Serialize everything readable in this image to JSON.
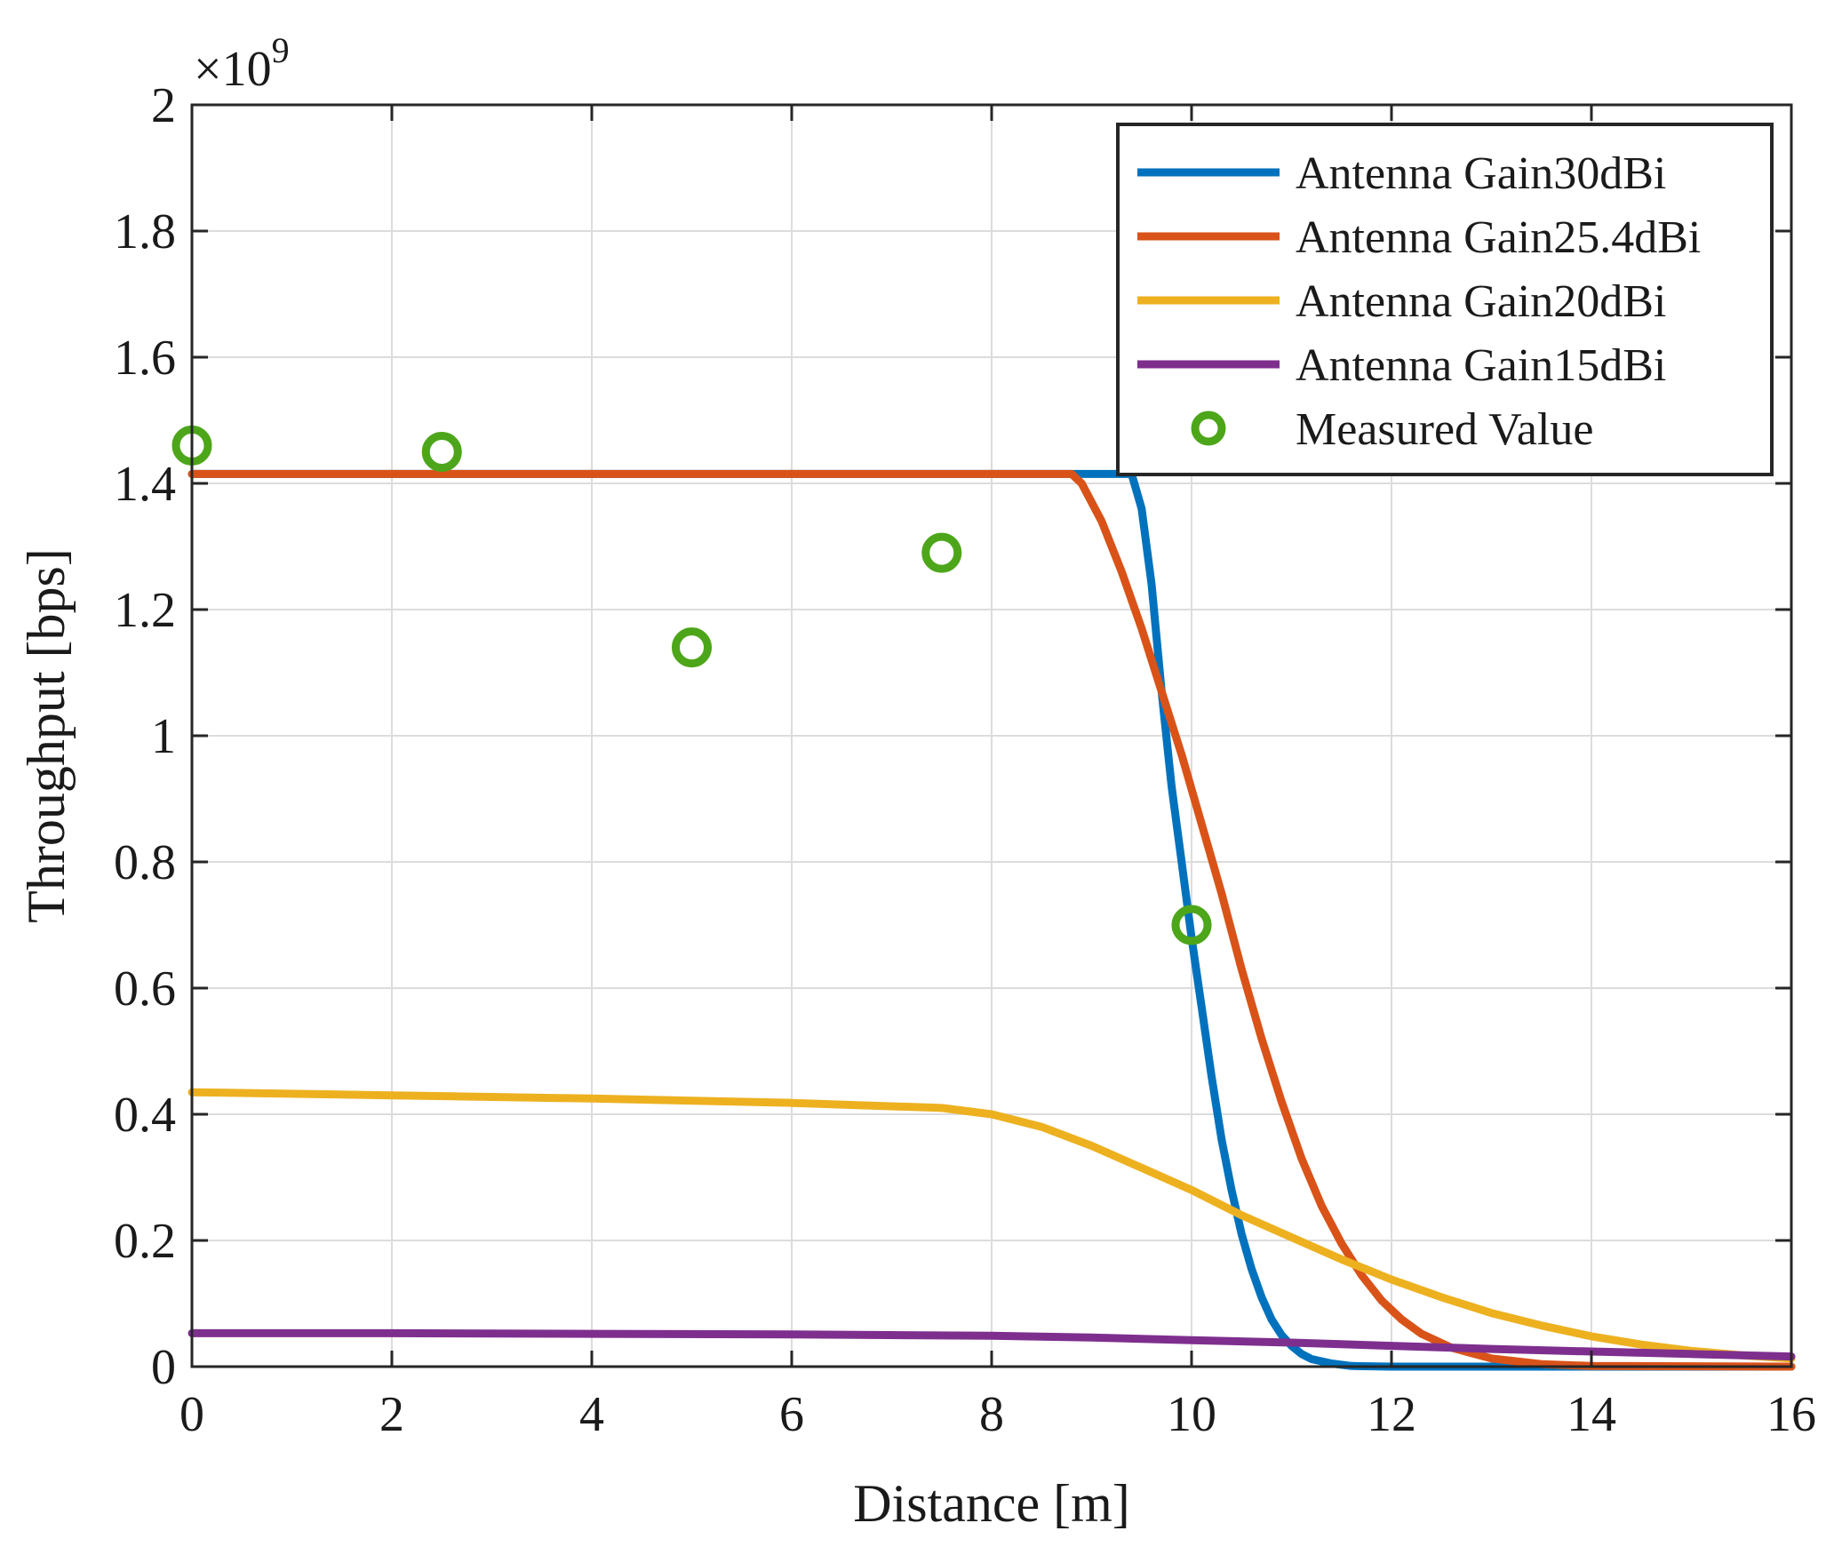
{
  "chart_data": {
    "type": "line",
    "title": "",
    "xlabel": "Distance [m]",
    "ylabel": "Throughput [bps]",
    "y_exponent_label": "×10",
    "y_exponent_power": "9",
    "y_multiplier": 1000000000,
    "xlim": [
      0,
      16
    ],
    "ylim": [
      0,
      2
    ],
    "xticks": [
      0,
      2,
      4,
      6,
      8,
      10,
      12,
      14,
      16
    ],
    "xtick_labels": [
      "0",
      "2",
      "4",
      "6",
      "8",
      "10",
      "12",
      "14",
      "16"
    ],
    "yticks": [
      0,
      0.2,
      0.4,
      0.6,
      0.8,
      1,
      1.2,
      1.4,
      1.6,
      1.8,
      2
    ],
    "ytick_labels": [
      "0",
      "0.2",
      "0.4",
      "0.6",
      "0.8",
      "1",
      "1.2",
      "1.4",
      "1.6",
      "1.8",
      "2"
    ],
    "grid": true,
    "legend_position": "top-right",
    "series": [
      {
        "name": "Antenna Gain30dBi",
        "kind": "line",
        "color": "#0072BD",
        "x": [
          0,
          2,
          4,
          6,
          8,
          9,
          9.4,
          9.5,
          9.6,
          9.7,
          9.8,
          9.9,
          10.0,
          10.1,
          10.2,
          10.3,
          10.4,
          10.5,
          10.6,
          10.7,
          10.8,
          10.9,
          11.0,
          11.1,
          11.2,
          11.4,
          11.6,
          12,
          14,
          16
        ],
        "y": [
          1.415,
          1.415,
          1.415,
          1.415,
          1.415,
          1.415,
          1.415,
          1.36,
          1.24,
          1.07,
          0.92,
          0.8,
          0.68,
          0.57,
          0.46,
          0.36,
          0.28,
          0.21,
          0.155,
          0.11,
          0.075,
          0.05,
          0.033,
          0.02,
          0.012,
          0.005,
          0.001,
          0,
          0,
          0
        ]
      },
      {
        "name": "Antenna Gain25.4dBi",
        "kind": "line",
        "color": "#D95319",
        "x": [
          0,
          2,
          4,
          6,
          8,
          8.8,
          8.9,
          9.1,
          9.3,
          9.5,
          9.7,
          9.9,
          10.1,
          10.3,
          10.5,
          10.7,
          10.9,
          11.1,
          11.3,
          11.5,
          11.7,
          11.9,
          12.1,
          12.3,
          12.6,
          13.0,
          13.5,
          14,
          16
        ],
        "y": [
          1.415,
          1.415,
          1.415,
          1.415,
          1.415,
          1.415,
          1.4,
          1.34,
          1.26,
          1.17,
          1.07,
          0.97,
          0.86,
          0.75,
          0.63,
          0.52,
          0.42,
          0.33,
          0.255,
          0.195,
          0.145,
          0.105,
          0.075,
          0.052,
          0.03,
          0.013,
          0.004,
          0.001,
          0
        ]
      },
      {
        "name": "Antenna Gain20dBi",
        "kind": "line",
        "color": "#EDB120",
        "x": [
          0,
          2,
          4,
          6,
          7.5,
          8,
          8.5,
          9,
          9.5,
          10,
          10.5,
          11,
          11.5,
          12,
          12.5,
          13,
          13.5,
          14,
          14.5,
          15,
          15.5,
          16
        ],
        "y": [
          0.435,
          0.43,
          0.425,
          0.418,
          0.41,
          0.4,
          0.38,
          0.35,
          0.315,
          0.28,
          0.24,
          0.205,
          0.17,
          0.138,
          0.11,
          0.085,
          0.065,
          0.048,
          0.035,
          0.025,
          0.018,
          0.013
        ]
      },
      {
        "name": "Antenna Gain15dBi",
        "kind": "line",
        "color": "#7E2F8E",
        "x": [
          0,
          2,
          4,
          6,
          8,
          9,
          10,
          11,
          12,
          13,
          14,
          15,
          16
        ],
        "y": [
          0.053,
          0.053,
          0.052,
          0.051,
          0.049,
          0.046,
          0.042,
          0.038,
          0.033,
          0.028,
          0.024,
          0.02,
          0.016
        ]
      },
      {
        "name": "Measured Value",
        "kind": "scatter",
        "color": "#4DA61A",
        "x": [
          0,
          2.5,
          5,
          7.5,
          10
        ],
        "y": [
          1.46,
          1.45,
          1.14,
          1.29,
          0.7
        ]
      }
    ]
  }
}
